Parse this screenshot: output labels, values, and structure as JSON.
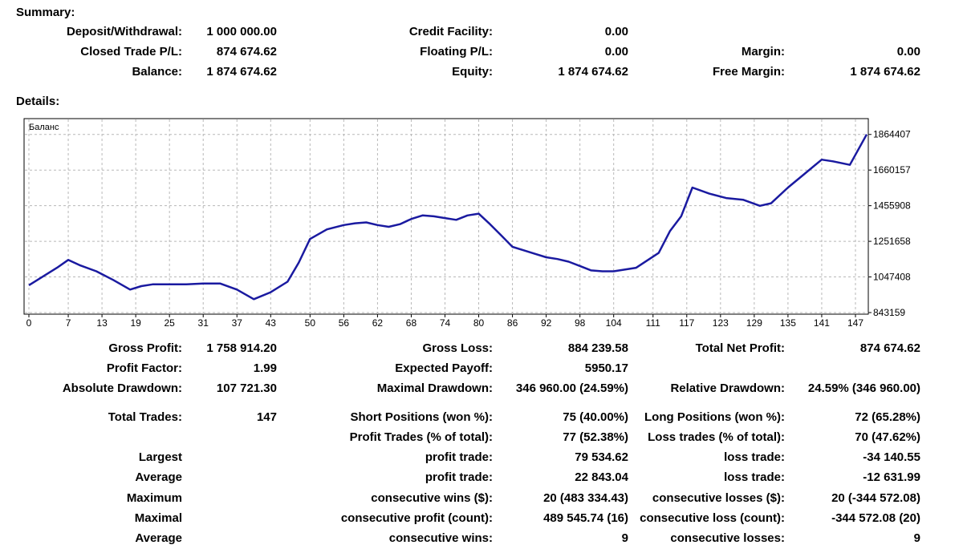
{
  "summary": {
    "heading": "Summary:",
    "rows": [
      [
        {
          "label": "Deposit/Withdrawal:",
          "value": "1 000 000.00"
        },
        {
          "label": "Credit Facility:",
          "value": "0.00"
        },
        {
          "label": "",
          "value": ""
        }
      ],
      [
        {
          "label": "Closed Trade P/L:",
          "value": "874 674.62"
        },
        {
          "label": "Floating P/L:",
          "value": "0.00"
        },
        {
          "label": "Margin:",
          "value": "0.00"
        }
      ],
      [
        {
          "label": "Balance:",
          "value": "1 874 674.62"
        },
        {
          "label": "Equity:",
          "value": "1 874 674.62"
        },
        {
          "label": "Free Margin:",
          "value": "1 874 674.62"
        }
      ]
    ]
  },
  "details": {
    "heading": "Details:",
    "rows": [
      [
        {
          "label": "Gross Profit:",
          "value": "1 758 914.20"
        },
        {
          "label": "Gross Loss:",
          "value": "884 239.58"
        },
        {
          "label": "Total Net Profit:",
          "value": "874 674.62"
        }
      ],
      [
        {
          "label": "Profit Factor:",
          "value": "1.99"
        },
        {
          "label": "Expected Payoff:",
          "value": "5950.17"
        },
        {
          "label": "",
          "value": ""
        }
      ],
      [
        {
          "label": "Absolute Drawdown:",
          "value": "107 721.30"
        },
        {
          "label": "Maximal Drawdown:",
          "value": "346 960.00 (24.59%)"
        },
        {
          "label": "Relative Drawdown:",
          "value": "24.59% (346 960.00)"
        }
      ],
      [
        {
          "label": "Total Trades:",
          "value": "147"
        },
        {
          "label": "Short Positions (won %):",
          "value": "75 (40.00%)"
        },
        {
          "label": "Long Positions (won %):",
          "value": "72 (65.28%)"
        }
      ],
      [
        {
          "label": "",
          "value": ""
        },
        {
          "label": "Profit Trades (% of total):",
          "value": "77 (52.38%)"
        },
        {
          "label": "Loss trades (% of total):",
          "value": "70 (47.62%)"
        }
      ],
      [
        {
          "label": "Largest",
          "value": ""
        },
        {
          "label": "profit trade:",
          "value": "79 534.62"
        },
        {
          "label": "loss trade:",
          "value": "-34 140.55"
        }
      ],
      [
        {
          "label": "Average",
          "value": ""
        },
        {
          "label": "profit trade:",
          "value": "22 843.04"
        },
        {
          "label": "loss trade:",
          "value": "-12 631.99"
        }
      ],
      [
        {
          "label": "Maximum",
          "value": ""
        },
        {
          "label": "consecutive wins ($):",
          "value": "20 (483 334.43)"
        },
        {
          "label": "consecutive losses ($):",
          "value": "20 (-344 572.08)"
        }
      ],
      [
        {
          "label": "Maximal",
          "value": ""
        },
        {
          "label": "consecutive profit (count):",
          "value": "489 545.74 (16)"
        },
        {
          "label": "consecutive loss (count):",
          "value": "-344 572.08 (20)"
        }
      ],
      [
        {
          "label": "Average",
          "value": ""
        },
        {
          "label": "consecutive wins:",
          "value": "9"
        },
        {
          "label": "consecutive losses:",
          "value": "9"
        }
      ]
    ]
  },
  "chart_data": {
    "type": "line",
    "series_label": "Баланс",
    "line_color": "#1a1aa0",
    "grid": true,
    "xlim": [
      0,
      149
    ],
    "ylim": [
      843159,
      1900000
    ],
    "x_ticks": [
      0,
      7,
      13,
      19,
      25,
      31,
      37,
      43,
      50,
      56,
      62,
      68,
      74,
      80,
      86,
      92,
      98,
      104,
      111,
      117,
      123,
      129,
      135,
      141,
      147
    ],
    "y_ticks": [
      843159,
      1047408,
      1251658,
      1455908,
      1660157,
      1864407
    ],
    "series": [
      {
        "x": [
          0,
          2,
          5,
          7,
          9,
          12,
          15,
          18,
          20,
          22,
          25,
          28,
          31,
          34,
          37,
          40,
          43,
          46,
          48,
          50,
          53,
          56,
          58,
          60,
          62,
          64,
          66,
          68,
          70,
          72,
          74,
          76,
          78,
          80,
          82,
          84,
          86,
          88,
          90,
          92,
          94,
          96,
          98,
          100,
          102,
          104,
          108,
          112,
          114,
          116,
          118,
          121,
          124,
          127,
          130,
          132,
          135,
          138,
          141,
          143,
          146,
          149
        ],
        "y": [
          1000000,
          1040000,
          1100000,
          1145000,
          1115000,
          1080000,
          1030000,
          975000,
          995000,
          1005000,
          1005000,
          1005000,
          1010000,
          1010000,
          975000,
          920000,
          960000,
          1020000,
          1130000,
          1265000,
          1320000,
          1345000,
          1355000,
          1360000,
          1345000,
          1335000,
          1350000,
          1380000,
          1400000,
          1395000,
          1385000,
          1375000,
          1400000,
          1410000,
          1350000,
          1285000,
          1220000,
          1200000,
          1180000,
          1160000,
          1150000,
          1135000,
          1110000,
          1085000,
          1080000,
          1080000,
          1100000,
          1185000,
          1310000,
          1395000,
          1560000,
          1525000,
          1500000,
          1490000,
          1455000,
          1470000,
          1560000,
          1640000,
          1720000,
          1710000,
          1690000,
          1864407
        ]
      }
    ]
  }
}
